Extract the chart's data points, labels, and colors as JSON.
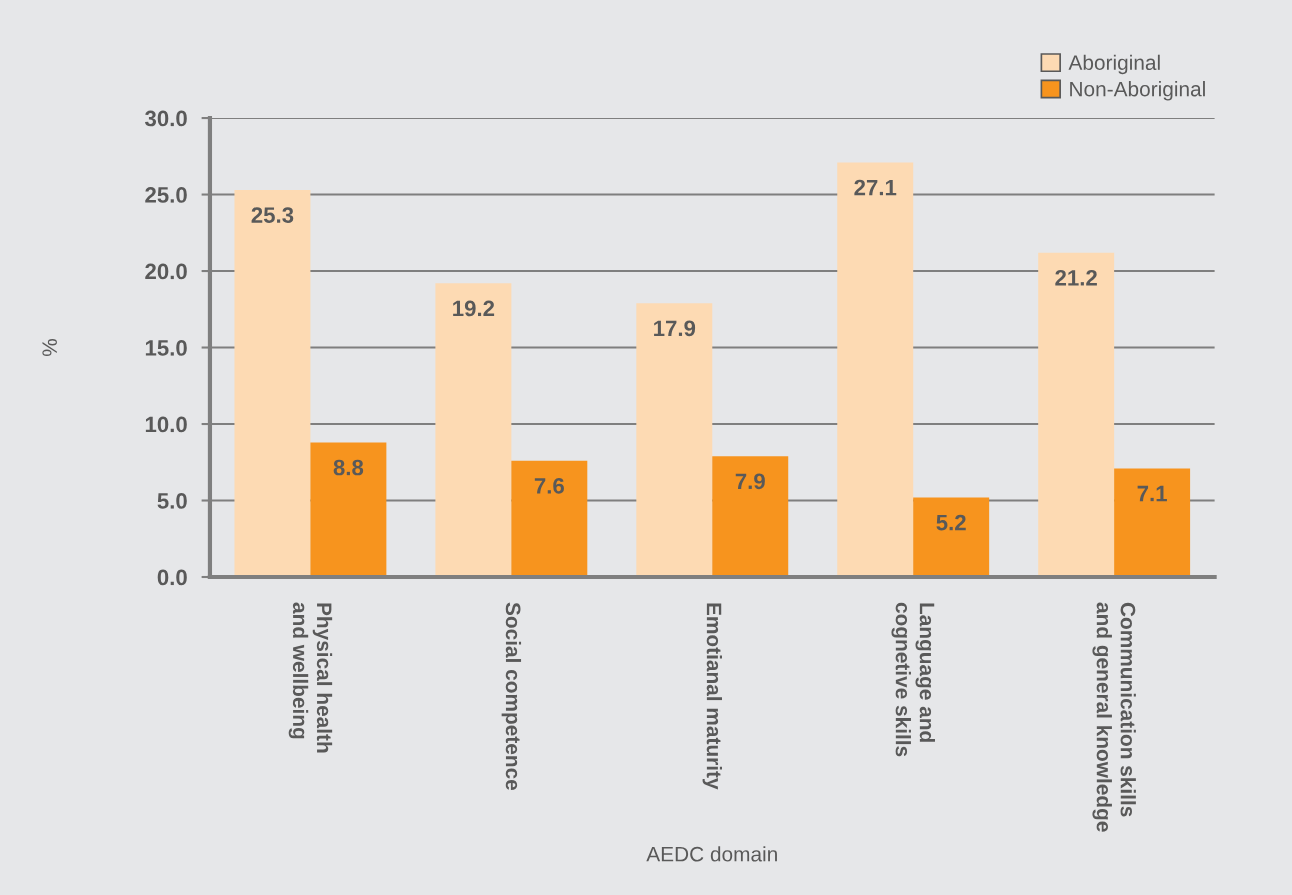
{
  "chart_data": {
    "type": "bar",
    "xlabel": "AEDC domain",
    "ylabel": "%",
    "categories": [
      "Physical health\nand wellbeing",
      "Social competence",
      "Emotianal maturity",
      "Language and\ncognetive skills",
      "Communication skills\nand general knowledge"
    ],
    "series": [
      {
        "name": "Aboriginal",
        "color": "#fddab3",
        "values": [
          25.3,
          19.2,
          17.9,
          27.1,
          21.2
        ]
      },
      {
        "name": "Non-Aboriginal",
        "color": "#f7941e",
        "values": [
          8.8,
          7.6,
          7.9,
          5.2,
          7.1
        ]
      }
    ],
    "ylim": [
      0,
      30
    ],
    "yticks": [
      {
        "value": 0,
        "label": "0.0"
      },
      {
        "value": 5,
        "label": "5.0"
      },
      {
        "value": 10,
        "label": "10.0"
      },
      {
        "value": 15,
        "label": "15.0"
      },
      {
        "value": 20,
        "label": "20.0"
      },
      {
        "value": 25,
        "label": "25.0"
      },
      {
        "value": 30,
        "label": "30.0"
      }
    ],
    "grid": "y",
    "legend": "top right",
    "data_labels": true
  }
}
